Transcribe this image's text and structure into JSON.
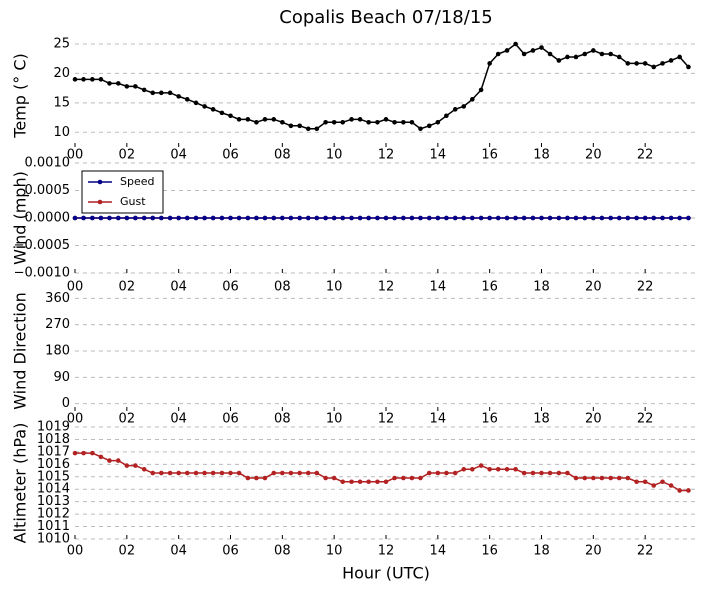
{
  "chart_data": [
    {
      "type": "line",
      "title": "Copalis Beach 07/18/15",
      "ylabel": "Temp (° C)",
      "x": [
        0,
        0.33,
        0.67,
        1,
        1.33,
        1.67,
        2,
        2.33,
        2.67,
        3,
        3.33,
        3.67,
        4,
        4.33,
        4.67,
        5,
        5.33,
        5.67,
        6,
        6.33,
        6.67,
        7,
        7.33,
        7.67,
        8,
        8.33,
        8.67,
        9,
        9.33,
        9.67,
        10,
        10.33,
        10.67,
        11,
        11.33,
        11.67,
        12,
        12.33,
        12.67,
        13,
        13.33,
        13.67,
        14,
        14.33,
        14.67,
        15,
        15.33,
        15.67,
        16,
        16.33,
        16.67,
        17,
        17.33,
        17.67,
        18,
        18.33,
        18.67,
        19,
        19.33,
        19.67,
        20,
        20.33,
        20.67,
        21,
        21.33,
        21.67,
        22,
        22.33,
        22.67,
        23,
        23.33,
        23.67
      ],
      "series": [
        {
          "color": "#000000",
          "values": [
            19,
            19,
            19,
            19,
            18.3,
            18.3,
            17.8,
            17.8,
            17.2,
            16.7,
            16.7,
            16.7,
            16.1,
            15.6,
            15,
            14.4,
            13.9,
            13.3,
            12.8,
            12.2,
            12.2,
            11.7,
            12.2,
            12.2,
            11.7,
            11.1,
            11.1,
            10.6,
            10.6,
            11.7,
            11.7,
            11.7,
            12.2,
            12.2,
            11.7,
            11.7,
            12.2,
            11.7,
            11.7,
            11.7,
            10.6,
            11.1,
            11.7,
            12.8,
            13.9,
            14.4,
            15.6,
            17.2,
            21.7,
            23.3,
            23.9,
            25,
            23.3,
            23.9,
            24.4,
            23.3,
            22.2,
            22.8,
            22.8,
            23.3,
            23.9,
            23.3,
            23.3,
            22.8,
            21.7,
            21.7,
            21.7,
            21.1,
            21.7,
            22.2,
            22.8,
            21.1
          ]
        }
      ],
      "xlim": [
        0,
        24
      ],
      "xticks": [
        {
          "value": 0,
          "label": "00"
        },
        {
          "value": 2,
          "label": "02"
        },
        {
          "value": 4,
          "label": "04"
        },
        {
          "value": 6,
          "label": "06"
        },
        {
          "value": 8,
          "label": "08"
        },
        10,
        12,
        14,
        16,
        18,
        20,
        22
      ],
      "ylim": [
        7.5,
        25
      ],
      "yticks": [
        10,
        15,
        20,
        25
      ],
      "grid": true
    },
    {
      "type": "line",
      "ylabel": "Wind (mph)",
      "x": [
        0,
        0.33,
        0.67,
        1,
        1.33,
        1.67,
        2,
        2.33,
        2.67,
        3,
        3.33,
        3.67,
        4,
        4.33,
        4.67,
        5,
        5.33,
        5.67,
        6,
        6.33,
        6.67,
        7,
        7.33,
        7.67,
        8,
        8.33,
        8.67,
        9,
        9.33,
        9.67,
        10,
        10.33,
        10.67,
        11,
        11.33,
        11.67,
        12,
        12.33,
        12.67,
        13,
        13.33,
        13.67,
        14,
        14.33,
        14.67,
        15,
        15.33,
        15.67,
        16,
        16.33,
        16.67,
        17,
        17.33,
        17.67,
        18,
        18.33,
        18.67,
        19,
        19.33,
        19.67,
        20,
        20.33,
        20.67,
        21,
        21.33,
        21.67,
        22,
        22.33,
        22.67,
        23,
        23.33,
        23.67
      ],
      "series": [
        {
          "name": "Gust",
          "color": "#b22222",
          "values": [
            0,
            0,
            0,
            0,
            0,
            0,
            0,
            0,
            0,
            0,
            0,
            0,
            0,
            0,
            0,
            0,
            0,
            0,
            0,
            0,
            0,
            0,
            0,
            0,
            0,
            0,
            0,
            0,
            0,
            0,
            0,
            0,
            0,
            0,
            0,
            0,
            0,
            0,
            0,
            0,
            0,
            0,
            0,
            0,
            0,
            0,
            0,
            0,
            0,
            0,
            0,
            0,
            0,
            0,
            0,
            0,
            0,
            0,
            0,
            0,
            0,
            0,
            0,
            0,
            0,
            0,
            0,
            0,
            0,
            0,
            0,
            0
          ]
        },
        {
          "name": "Speed",
          "color": "#00008b",
          "values": [
            0,
            0,
            0,
            0,
            0,
            0,
            0,
            0,
            0,
            0,
            0,
            0,
            0,
            0,
            0,
            0,
            0,
            0,
            0,
            0,
            0,
            0,
            0,
            0,
            0,
            0,
            0,
            0,
            0,
            0,
            0,
            0,
            0,
            0,
            0,
            0,
            0,
            0,
            0,
            0,
            0,
            0,
            0,
            0,
            0,
            0,
            0,
            0,
            0,
            0,
            0,
            0,
            0,
            0,
            0,
            0,
            0,
            0,
            0,
            0,
            0,
            0,
            0,
            0,
            0,
            0,
            0,
            0,
            0,
            0,
            0,
            0
          ]
        }
      ],
      "legend": "upper left",
      "xlim": [
        0,
        24
      ],
      "xticks": [
        {
          "value": 0,
          "label": "00"
        },
        {
          "value": 2,
          "label": "02"
        },
        {
          "value": 4,
          "label": "04"
        },
        {
          "value": 6,
          "label": "06"
        },
        {
          "value": 8,
          "label": "08"
        },
        10,
        12,
        14,
        16,
        18,
        20,
        22
      ],
      "ylim": [
        -0.001,
        0.001
      ],
      "yticks": [
        {
          "value": -0.001,
          "label": "−0.0010"
        },
        {
          "value": -0.0005,
          "label": "−0.0005"
        },
        {
          "value": 0,
          "label": "0.0000"
        },
        {
          "value": 0.0005,
          "label": "0.0005"
        },
        {
          "value": 0.001,
          "label": "0.0010"
        }
      ],
      "grid": true
    },
    {
      "type": "line",
      "ylabel": "Wind Direction",
      "series": [],
      "xlim": [
        0,
        24
      ],
      "xticks": [
        {
          "value": 0,
          "label": "00"
        },
        {
          "value": 2,
          "label": "02"
        },
        {
          "value": 4,
          "label": "04"
        },
        {
          "value": 6,
          "label": "06"
        },
        {
          "value": 8,
          "label": "08"
        },
        10,
        12,
        14,
        16,
        18,
        20,
        22
      ],
      "ylim": [
        -25,
        385
      ],
      "yticks": [
        0,
        90,
        180,
        270,
        360
      ],
      "grid": true
    },
    {
      "type": "line",
      "ylabel": "Altimeter (hPa)",
      "xlabel": "Hour (UTC)",
      "x": [
        0,
        0.33,
        0.67,
        1,
        1.33,
        1.67,
        2,
        2.33,
        2.67,
        3,
        3.33,
        3.67,
        4,
        4.33,
        4.67,
        5,
        5.33,
        5.67,
        6,
        6.33,
        6.67,
        7,
        7.33,
        7.67,
        8,
        8.33,
        8.67,
        9,
        9.33,
        9.67,
        10,
        10.33,
        10.67,
        11,
        11.33,
        11.67,
        12,
        12.33,
        12.67,
        13,
        13.33,
        13.67,
        14,
        14.33,
        14.67,
        15,
        15.33,
        15.67,
        16,
        16.33,
        16.67,
        17,
        17.33,
        17.67,
        18,
        18.33,
        18.67,
        19,
        19.33,
        19.67,
        20,
        20.33,
        20.67,
        21,
        21.33,
        21.67,
        22,
        22.33,
        22.67,
        23,
        23.33,
        23.67
      ],
      "series": [
        {
          "color": "#b22222",
          "values": [
            1016.9,
            1016.9,
            1016.9,
            1016.6,
            1016.3,
            1016.3,
            1015.9,
            1015.9,
            1015.6,
            1015.3,
            1015.3,
            1015.3,
            1015.3,
            1015.3,
            1015.3,
            1015.3,
            1015.3,
            1015.3,
            1015.3,
            1015.3,
            1014.9,
            1014.9,
            1014.9,
            1015.3,
            1015.3,
            1015.3,
            1015.3,
            1015.3,
            1015.3,
            1014.9,
            1014.9,
            1014.6,
            1014.6,
            1014.6,
            1014.6,
            1014.6,
            1014.6,
            1014.9,
            1014.9,
            1014.9,
            1014.9,
            1015.3,
            1015.3,
            1015.3,
            1015.3,
            1015.6,
            1015.6,
            1015.9,
            1015.6,
            1015.6,
            1015.6,
            1015.6,
            1015.3,
            1015.3,
            1015.3,
            1015.3,
            1015.3,
            1015.3,
            1014.9,
            1014.9,
            1014.9,
            1014.9,
            1014.9,
            1014.9,
            1014.9,
            1014.6,
            1014.6,
            1014.3,
            1014.6,
            1014.3,
            1013.9,
            1013.9
          ]
        }
      ],
      "xlim": [
        0,
        24
      ],
      "xticks": [
        {
          "value": 0,
          "label": "00"
        },
        {
          "value": 2,
          "label": "02"
        },
        {
          "value": 4,
          "label": "04"
        },
        {
          "value": 6,
          "label": "06"
        },
        {
          "value": 8,
          "label": "08"
        },
        10,
        12,
        14,
        16,
        18,
        20,
        22
      ],
      "ylim": [
        1010,
        1019
      ],
      "yticks": [
        1010,
        1011,
        1012,
        1013,
        1014,
        1015,
        1016,
        1017,
        1018,
        1019
      ],
      "grid": true
    }
  ]
}
